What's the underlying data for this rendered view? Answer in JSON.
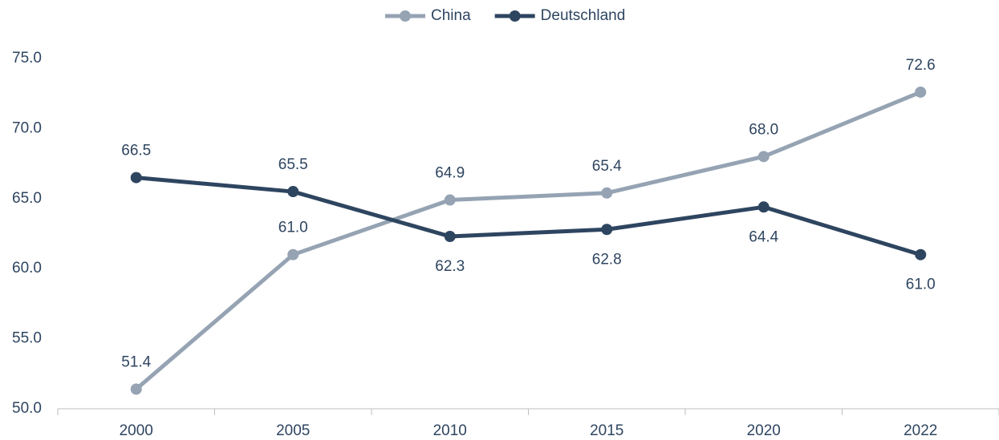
{
  "chart_data": {
    "type": "line",
    "categories": [
      "2000",
      "2005",
      "2010",
      "2015",
      "2020",
      "2022"
    ],
    "series": [
      {
        "name": "China",
        "color": "#95a3b3",
        "values": [
          51.4,
          61.0,
          64.9,
          65.4,
          68.0,
          72.6
        ],
        "value_labels": [
          "51.4",
          "61.0",
          "64.9",
          "65.4",
          "68.0",
          "72.6"
        ]
      },
      {
        "name": "Deutschland",
        "color": "#2e4560",
        "values": [
          66.5,
          65.5,
          62.3,
          62.8,
          64.4,
          61.0
        ],
        "value_labels": [
          "66.5",
          "65.5",
          "62.3",
          "62.8",
          "64.4",
          "61.0"
        ]
      }
    ],
    "ylim": [
      50,
      75
    ],
    "yticks": [
      {
        "value": 50,
        "label": "50.0"
      },
      {
        "value": 55,
        "label": "55.0"
      },
      {
        "value": 60,
        "label": "60.0"
      },
      {
        "value": 65,
        "label": "65.0"
      },
      {
        "value": 70,
        "label": "70.0"
      },
      {
        "value": 75,
        "label": "75.0"
      }
    ],
    "grid": false,
    "legend": "top"
  }
}
